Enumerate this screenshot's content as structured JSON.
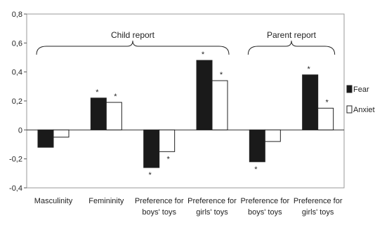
{
  "chart_data": {
    "type": "bar",
    "categories": [
      [
        "Masculinity"
      ],
      [
        "Femininity"
      ],
      [
        "Preference for",
        "boys' toys"
      ],
      [
        "Preference for",
        "girls' toys"
      ],
      [
        "Preference for",
        "boys' toys"
      ],
      [
        "Preference for",
        "girls' toys"
      ]
    ],
    "series": [
      {
        "name": "Fear",
        "values": [
          -0.12,
          0.22,
          -0.26,
          0.48,
          -0.22,
          0.38
        ],
        "significant": [
          false,
          true,
          true,
          true,
          true,
          true
        ],
        "color": "#1a1a1a"
      },
      {
        "name": "Anxiety",
        "values": [
          -0.05,
          0.19,
          -0.15,
          0.34,
          -0.08,
          0.15
        ],
        "significant": [
          false,
          true,
          true,
          true,
          false,
          true
        ],
        "color": "#ffffff"
      }
    ],
    "significance_marker": "*",
    "groups": [
      {
        "label": "Child report",
        "categories": [
          0,
          1,
          2,
          3
        ]
      },
      {
        "label": "Parent report",
        "categories": [
          4,
          5
        ]
      }
    ],
    "ylim": [
      -0.4,
      0.8
    ],
    "yticks": [
      "-0,4",
      "-0,2",
      "0",
      "0,2",
      "0,4",
      "0,6",
      "0,8"
    ],
    "ytick_values": [
      -0.4,
      -0.2,
      0,
      0.2,
      0.4,
      0.6,
      0.8
    ],
    "legend_position": "right",
    "grid": false,
    "title": "",
    "xlabel": "",
    "ylabel": ""
  }
}
